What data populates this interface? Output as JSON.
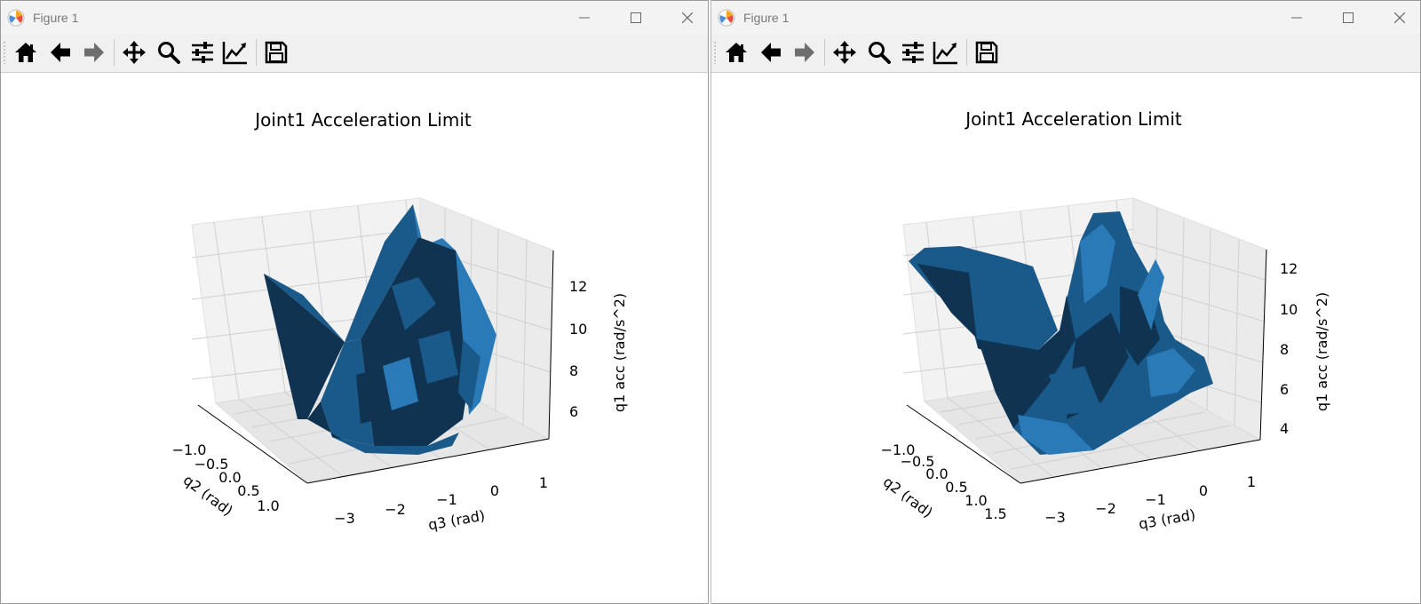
{
  "windows": [
    {
      "title": "Figure 1",
      "toolbar": [
        "home-icon",
        "back-arrow-icon",
        "forward-arrow-icon",
        "pan-icon",
        "zoom-icon",
        "configure-subplots-icon",
        "edit-axis-icon",
        "save-icon"
      ],
      "plot": {
        "title": "Joint1 Acceleration Limit",
        "xlabel": "q3 (rad)",
        "ylabel": "q2 (rad)",
        "zlabel": "q1 acc (rad/s^2)",
        "xticks": [
          "−3",
          "−2",
          "−1",
          "0",
          "1"
        ],
        "yticks": [
          "−1.0",
          "−0.5",
          "0.0",
          "0.5",
          "1.0"
        ],
        "zticks": [
          "6",
          "8",
          "10",
          "12"
        ]
      }
    },
    {
      "title": "Figure 1",
      "toolbar": [
        "home-icon",
        "back-arrow-icon",
        "forward-arrow-icon",
        "pan-icon",
        "zoom-icon",
        "configure-subplots-icon",
        "edit-axis-icon",
        "save-icon"
      ],
      "plot": {
        "title": "Joint1 Acceleration Limit",
        "xlabel": "q3 (rad)",
        "ylabel": "q2 (rad)",
        "zlabel": "q1 acc (rad/s^2)",
        "xticks": [
          "−3",
          "−2",
          "−1",
          "0",
          "1"
        ],
        "yticks": [
          "−1.0",
          "−0.5",
          "0.0",
          "0.5",
          "1.0",
          "1.5"
        ],
        "zticks": [
          "4",
          "6",
          "8",
          "10",
          "12"
        ]
      }
    }
  ],
  "colors": {
    "surface_dark": "#0f3350",
    "surface_mid": "#1a5a8a",
    "surface_light": "#2a7ab8",
    "pane": "#f2f2f2",
    "grid": "#d0d0d0"
  }
}
